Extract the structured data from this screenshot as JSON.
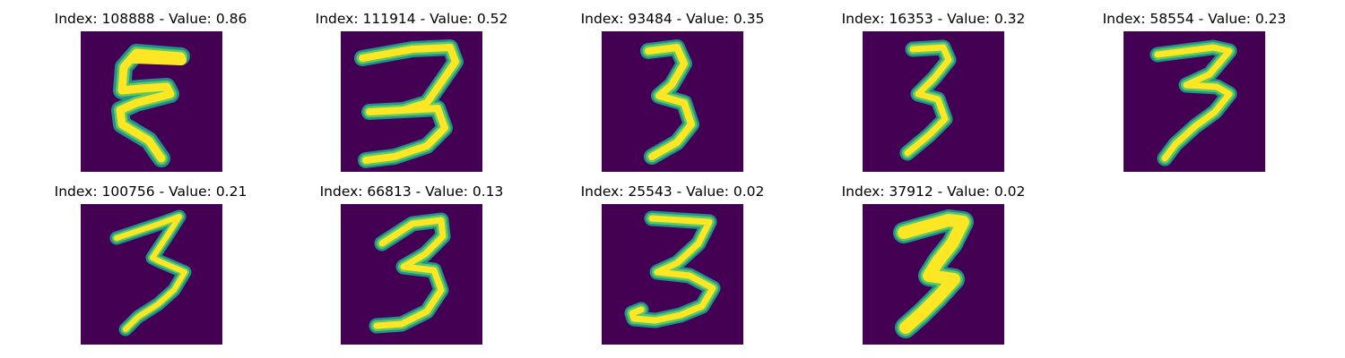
{
  "colors": {
    "background": "#440154",
    "stroke_core": "#fde725",
    "stroke_edge": "#5ec962",
    "stroke_halo": "#21918c"
  },
  "panels": [
    {
      "title": "Index: 108888 - Value: 0.86",
      "index": 108888,
      "value": 0.86,
      "depicts": "handwritten digit (5-like)"
    },
    {
      "title": "Index: 111914 - Value: 0.52",
      "index": 111914,
      "value": 0.52,
      "depicts": "handwritten digit 3"
    },
    {
      "title": "Index: 93484 - Value: 0.35",
      "index": 93484,
      "value": 0.35,
      "depicts": "handwritten digit 3"
    },
    {
      "title": "Index: 16353 - Value: 0.32",
      "index": 16353,
      "value": 0.32,
      "depicts": "handwritten digit 3"
    },
    {
      "title": "Index: 58554 - Value: 0.23",
      "index": 58554,
      "value": 0.23,
      "depicts": "handwritten digit 3"
    },
    {
      "title": "Index: 100756 - Value: 0.21",
      "index": 100756,
      "value": 0.21,
      "depicts": "handwritten digit 3"
    },
    {
      "title": "Index: 66813 - Value: 0.13",
      "index": 66813,
      "value": 0.13,
      "depicts": "handwritten digit 3"
    },
    {
      "title": "Index: 25543 - Value: 0.02",
      "index": 25543,
      "value": 0.02,
      "depicts": "handwritten digit 3"
    },
    {
      "title": "Index: 37912 - Value: 0.02",
      "index": 37912,
      "value": 0.02,
      "depicts": "handwritten digit 3"
    }
  ]
}
